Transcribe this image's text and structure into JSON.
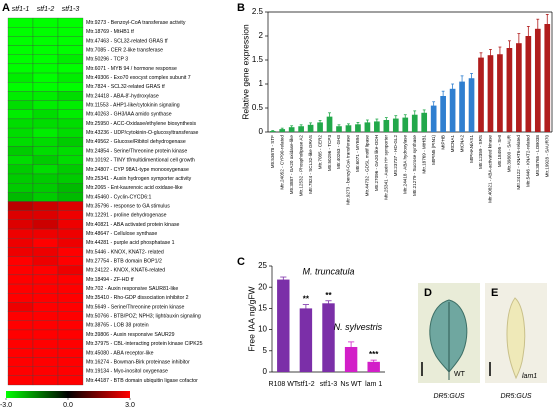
{
  "chart_data": [
    {
      "type": "heatmap",
      "panel": "A",
      "columns": [
        "stf1-1",
        "stf1-2",
        "stf1-3"
      ],
      "rows": [
        "Mtr.9273 - Benzoyl-CoA transferase activity",
        "Mtr.18769 - MtHB1 tf",
        "Mtr.47463 - SCL32-related GRAS tf",
        "Mtr.7085 - CER 2-like transferase",
        "Mtr.50296 - TCP 3",
        "Mtr.6071 - MYB 94 / hormone response",
        "Mtr.49306 - Exo70 exocyst complex subunit 7",
        "Mtr.7824 - SCL32-related GRAS tf",
        "Mtr.24418 - ABA-8'-hydroxylase",
        "Mtr.11553 - AHP1-like/cytokinin signaling",
        "Mtr.40263 - GH3/IAA amido synthase",
        "Mtr.25950 - ACC-Oxidase/ethylene biosynthesis",
        "Mtr.43236 - UDP/cytokinin-O-glucosyltransferase",
        "Mtr.49562 - Glucose/Ribitol dehydrogenase",
        "Mtr.24854 - Serine/Threonine protein kinase",
        "Mtr.10192 - TINY tf/multidimentional cell growth",
        "Mtr.24807 - CYP 98A1-type monooxygenase",
        "Mtr.25341 - Auxin hydrogen symporter activity",
        "Mtr.2065 - Ent-kaurenoic acid oxidase-like",
        "Mtr.45460 - Cyclin-CYCD6:1",
        "Mtr.35796 - response to GA stimulus",
        "Mtr.12291 - proline dehydrogenase",
        "Mtr.40821 - ABA activated protein kinase",
        "Mtr.48647 - Cellulose synthase",
        "Mtr.44281 - purple acid phosphatase 1",
        "Mtr.5446 - KNOX, KNAT2- related",
        "Mtr.27754 - BTB domain BOP1/2",
        "Mtr.24122 - KNOX, KNAT6-related",
        "Mtr.18494 - ZF-HD tf",
        "Mtr.702 - Auxin responsive SAUR81-like",
        "Mtr.35410 - Rho-GDP dissociation inhibitor 2",
        "Mtr.5649 - Serine/Threonine protein kinase",
        "Mtr.50766 - BTB/POZ; NPH3; light/auxin signaling",
        "Mtr.38765 - LOB 38 protein",
        "Mtr.39806 - Auxin responsive SAUR29",
        "Mtr.37975 - CBL-interacting protein kinase CIPK25",
        "Mtr.45080 - ABA receptor-like",
        "Mtr.16274 - Bowman-Birk proteinase inhibitor",
        "Mtr.19134 - Myo-inositol oxygenase",
        "Mtr.44187 - BTB domain ubiquitin ligase cofactor"
      ],
      "values": [
        [
          -3,
          -3,
          -3
        ],
        [
          -3,
          -3,
          -3
        ],
        [
          -3,
          -3,
          -3
        ],
        [
          -3,
          -3,
          -3
        ],
        [
          -3,
          -3,
          -2.8
        ],
        [
          -3,
          -3,
          -3
        ],
        [
          -2.8,
          -3,
          -2.8
        ],
        [
          -3,
          -3,
          -3
        ],
        [
          -2.8,
          -2.8,
          -2.6
        ],
        [
          -2.6,
          -2.8,
          -2.8
        ],
        [
          -2.8,
          -2.6,
          -2.8
        ],
        [
          -2.6,
          -2.6,
          -2.6
        ],
        [
          -2.6,
          -2.8,
          -2.6
        ],
        [
          -2.6,
          -2.6,
          -2.4
        ],
        [
          -2.4,
          -2.6,
          -2.6
        ],
        [
          -2.6,
          -2.4,
          -2.6
        ],
        [
          -2.4,
          -2.6,
          -2.4
        ],
        [
          -2.4,
          -2.4,
          -2.4
        ],
        [
          -2.4,
          -2.4,
          -2.2
        ],
        [
          -2.2,
          -2.4,
          -2.2
        ],
        [
          2.2,
          2.4,
          2.6
        ],
        [
          2.6,
          2.6,
          2.8
        ],
        [
          2.6,
          2.4,
          2.8
        ],
        [
          2.8,
          2.8,
          2.8
        ],
        [
          2.8,
          3,
          2.8
        ],
        [
          2.8,
          2.8,
          3
        ],
        [
          3,
          2.8,
          3
        ],
        [
          3,
          3,
          2.8
        ],
        [
          3,
          3,
          3
        ],
        [
          3,
          3,
          3
        ],
        [
          3,
          3,
          3
        ],
        [
          2.8,
          3,
          3
        ],
        [
          3,
          3,
          3
        ],
        [
          3,
          3,
          3
        ],
        [
          3,
          3,
          3
        ],
        [
          3,
          3,
          3
        ],
        [
          3,
          3,
          3
        ],
        [
          3,
          3,
          3
        ],
        [
          3,
          3,
          3
        ],
        [
          3,
          3,
          3
        ]
      ],
      "zlim": [
        -3,
        3
      ],
      "zticks": [
        {
          "value": -3,
          "label": "-3.0"
        },
        {
          "value": 0,
          "label": "0.0"
        },
        {
          "value": 3,
          "label": "3.0"
        }
      ]
    },
    {
      "type": "bar",
      "panel": "B",
      "ylabel": "Relative gene expression",
      "categories": [
        "Mtr.53678 - STF",
        "Mtr.24052 - CYP90-related",
        "Mtr.3887 - GA20 oxidase-like",
        "Mtr.12532 - Phospholipase A2",
        "Mtr.7824 - SCL32-like GRAS",
        "Mtr.7085 - CER2",
        "Mtr.50296 - TCP3",
        "Mtr.40263 - GH3",
        "Mtr.9273 - benzyl-CoA transferase",
        "Mtr.6071 - MYB94",
        "Mtr.44732 - GDSL motif lipase",
        "Mtr.27096 - GA20 like-ODH",
        "Mtr.25341 - Auxin H+ symporter",
        "Mtr.23737 - HD-GL2",
        "Mtr.24418 - ABA hydroxylase",
        "Mtr.21279 - Sucrose synthase",
        "Mtr.18769 - MtHB1",
        "MtPIN5 (PIN1)",
        "MtPHB",
        "MtCNA1",
        "MtCNA2",
        "MtPHAN/AS1",
        "Mtr.12359 - SRS",
        "Mtr.40821 - ABA-activated kinase",
        "Mtr.18495 - SHI",
        "Mtr.39800 - SAUR",
        "Mtr.24122 - KNAT6-related",
        "Mtr.5446 - KNAT2-related",
        "Mtr.38765 - LOB038",
        "Mtr.19928 - SAUR70"
      ],
      "values": [
        0.02,
        0.06,
        0.1,
        0.12,
        0.15,
        0.2,
        0.32,
        0.12,
        0.14,
        0.16,
        0.2,
        0.22,
        0.25,
        0.28,
        0.3,
        0.36,
        0.4,
        0.55,
        0.75,
        0.9,
        1.05,
        1.12,
        1.55,
        1.6,
        1.62,
        1.75,
        1.85,
        2.0,
        2.15,
        2.25
      ],
      "errors": [
        0.01,
        0.02,
        0.03,
        0.03,
        0.04,
        0.04,
        0.08,
        0.03,
        0.03,
        0.04,
        0.05,
        0.05,
        0.05,
        0.06,
        0.06,
        0.08,
        0.06,
        0.08,
        0.1,
        0.1,
        0.12,
        0.1,
        0.1,
        0.12,
        0.15,
        0.15,
        0.2,
        0.2,
        0.2,
        0.2
      ],
      "colors": [
        "#22a84a",
        "#22a84a",
        "#22a84a",
        "#22a84a",
        "#22a84a",
        "#22a84a",
        "#22a84a",
        "#22a84a",
        "#22a84a",
        "#22a84a",
        "#22a84a",
        "#22a84a",
        "#22a84a",
        "#22a84a",
        "#22a84a",
        "#22a84a",
        "#22a84a",
        "#2f7fd0",
        "#2f7fd0",
        "#2f7fd0",
        "#2f7fd0",
        "#2f7fd0",
        "#b01c1c",
        "#b01c1c",
        "#b01c1c",
        "#b01c1c",
        "#b01c1c",
        "#b01c1c",
        "#b01c1c",
        "#b01c1c"
      ],
      "ylim": [
        0,
        2.5
      ],
      "yticks": [
        0,
        0.5,
        1,
        1.5,
        2,
        2.5
      ]
    },
    {
      "type": "bar",
      "panel": "C",
      "ylabel": "Free IAA ng/gFW",
      "categories": [
        "R108 WT",
        "stf1-2",
        "stf1-3",
        "Ns WT",
        "lam 1"
      ],
      "values": [
        21.8,
        15,
        16.2,
        5.9,
        2.4
      ],
      "errors": [
        0.6,
        0.9,
        0.6,
        1.2,
        0.4
      ],
      "significance": [
        null,
        "**",
        "**",
        null,
        "***"
      ],
      "colors": [
        "#7b2fa8",
        "#7b2fa8",
        "#7b2fa8",
        "#d21fc8",
        "#d21fc8"
      ],
      "annotations": [
        "M. truncatula",
        "N. sylvestris"
      ],
      "ylim": [
        0,
        25
      ],
      "yticks": [
        0,
        5,
        10,
        15,
        20,
        25
      ]
    }
  ],
  "images": [
    {
      "panel": "D",
      "label": "WT",
      "caption": "DR5:GUS"
    },
    {
      "panel": "E",
      "label": "lam1",
      "caption": "DR5:GUS"
    }
  ]
}
